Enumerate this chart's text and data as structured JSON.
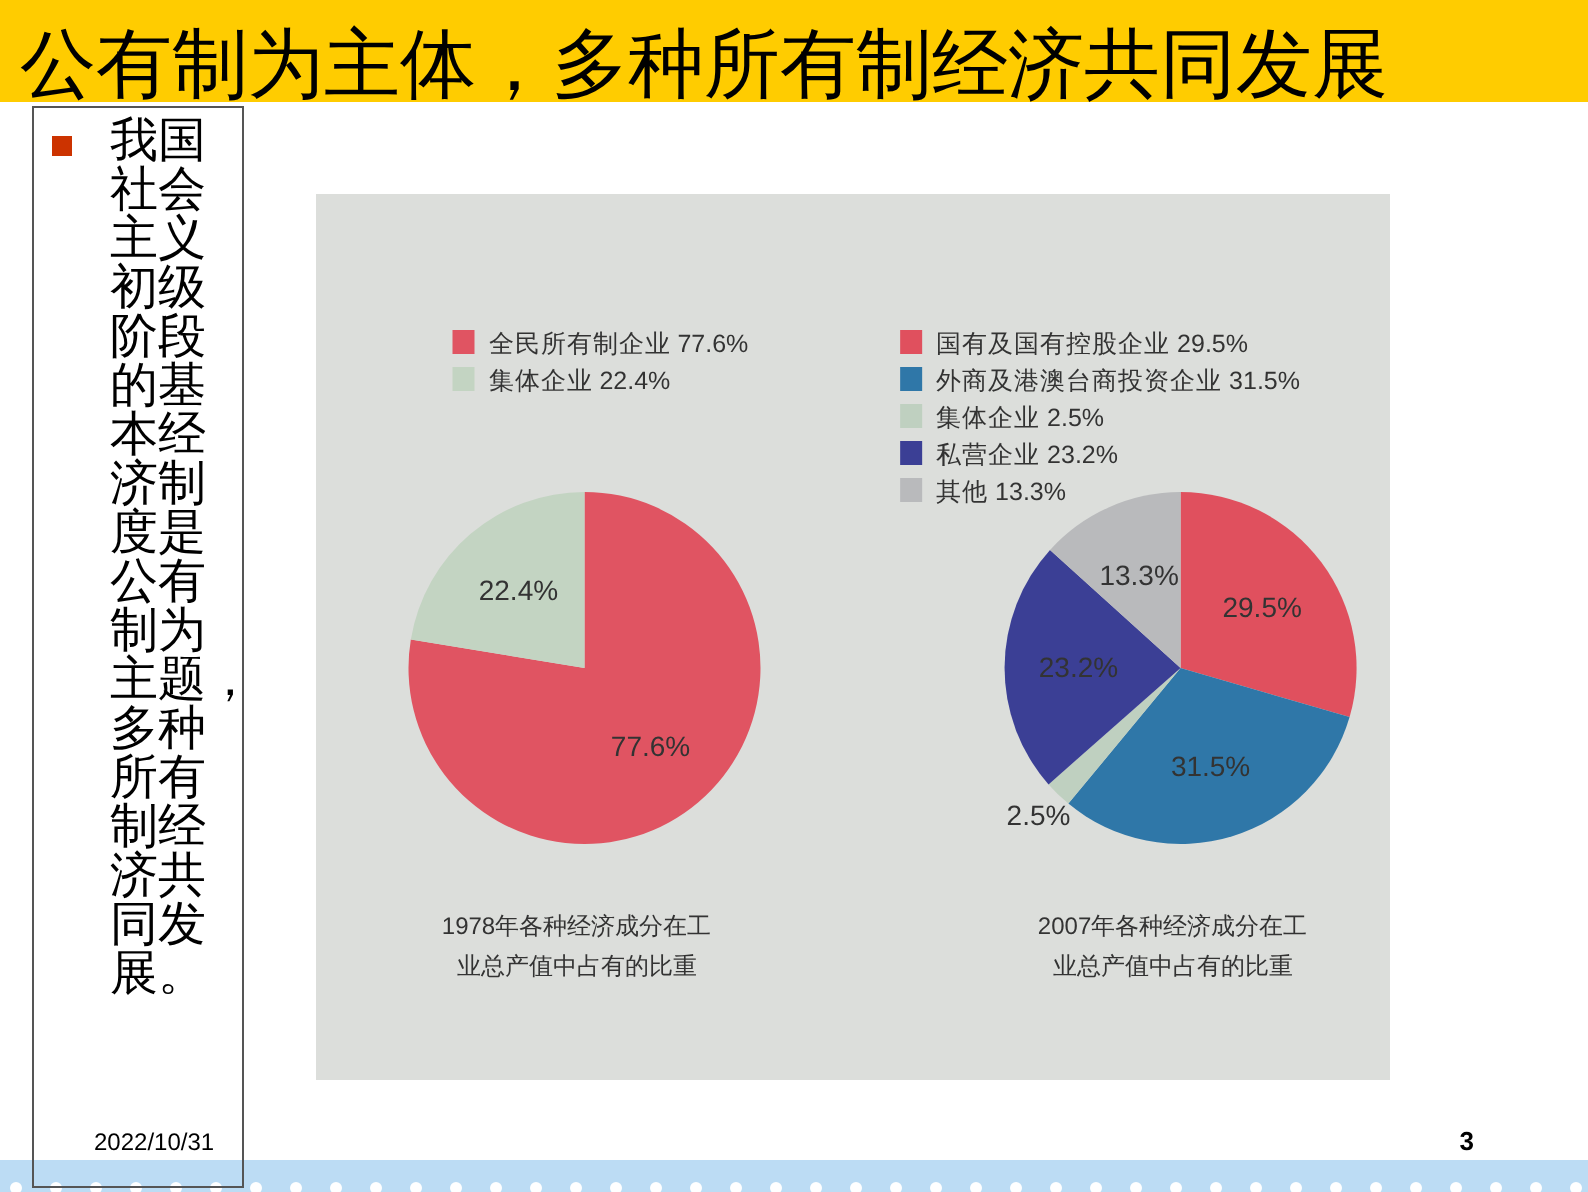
{
  "chart_data": [
    {
      "type": "other",
      "title": "公有制为主体，多种所有制经济共同发展",
      "annotations": [
        "我国社会主义初级阶段的基本经济制度是公有制为主题，多种所有制经济共同发展。",
        "2022/10/31",
        "3"
      ]
    },
    {
      "type": "pie",
      "title": "1978年各种经济成分在工业总产值中占有的比重",
      "categories": [
        "全民所有制企业",
        "集体企业"
      ],
      "values": [
        77.6,
        22.4
      ],
      "colors": [
        "#e05462",
        "#c3d4c2"
      ],
      "value_labels": [
        "77.6%",
        "22.4%"
      ],
      "legend": "top left"
    },
    {
      "type": "pie",
      "title": "2007年各种经济成分在工业总产值中占有的比重",
      "categories": [
        "国有及国有控股企业",
        "外商及港澳台商投资企业",
        "集体企业",
        "私营企业",
        "其他"
      ],
      "values": [
        29.5,
        31.5,
        2.5,
        23.2,
        13.3
      ],
      "colors": [
        "#e0505e",
        "#2f77a8",
        "#bfd0c0",
        "#3b3f95",
        "#b9babc"
      ],
      "value_labels": [
        "29.5%",
        "31.5%",
        "2.5%",
        "23.2%",
        "13.3%"
      ],
      "legend": "top left"
    }
  ]
}
